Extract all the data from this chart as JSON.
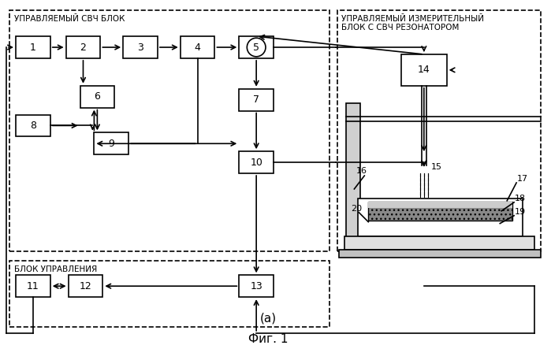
{
  "bg_color": "#ffffff",
  "title_a": "(a)",
  "title_fig": "Фиг. 1",
  "label_left_top": "УПРАВЛЯЕМЫЙ СВЧ БЛОК",
  "label_right_top1": "УПРАВЛЯЕМЫЙ ИЗМЕРИТЕЛЬНЫЙ",
  "label_right_top2": "БЛОК С СВЧ РЕЗОНАТОРОМ",
  "label_bottom": "БЛОК УПРАВЛЕНИЯ"
}
